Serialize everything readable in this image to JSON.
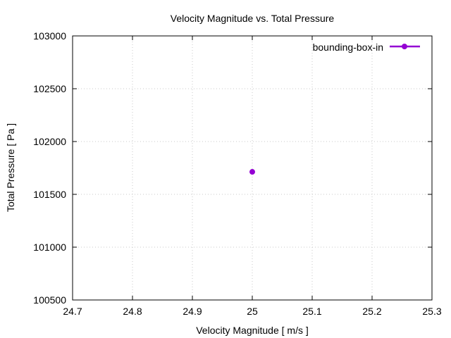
{
  "chart_data": {
    "type": "scatter",
    "title": "Velocity Magnitude vs. Total Pressure",
    "xlabel": "Velocity Magnitude [ m/s ]",
    "ylabel": "Total Pressure [ Pa ]",
    "xlim": [
      24.7,
      25.3
    ],
    "ylim": [
      100500,
      103000
    ],
    "xticks": [
      "24.7",
      "24.8",
      "24.9",
      "25",
      "25.1",
      "25.2",
      "25.3"
    ],
    "yticks": [
      "100500",
      "101000",
      "101500",
      "102000",
      "102500",
      "103000"
    ],
    "grid": true,
    "legend_position": "top-right",
    "series": [
      {
        "name": "bounding-box-in",
        "color": "#9400d3",
        "x": [
          25.0
        ],
        "y": [
          101713
        ]
      }
    ]
  }
}
